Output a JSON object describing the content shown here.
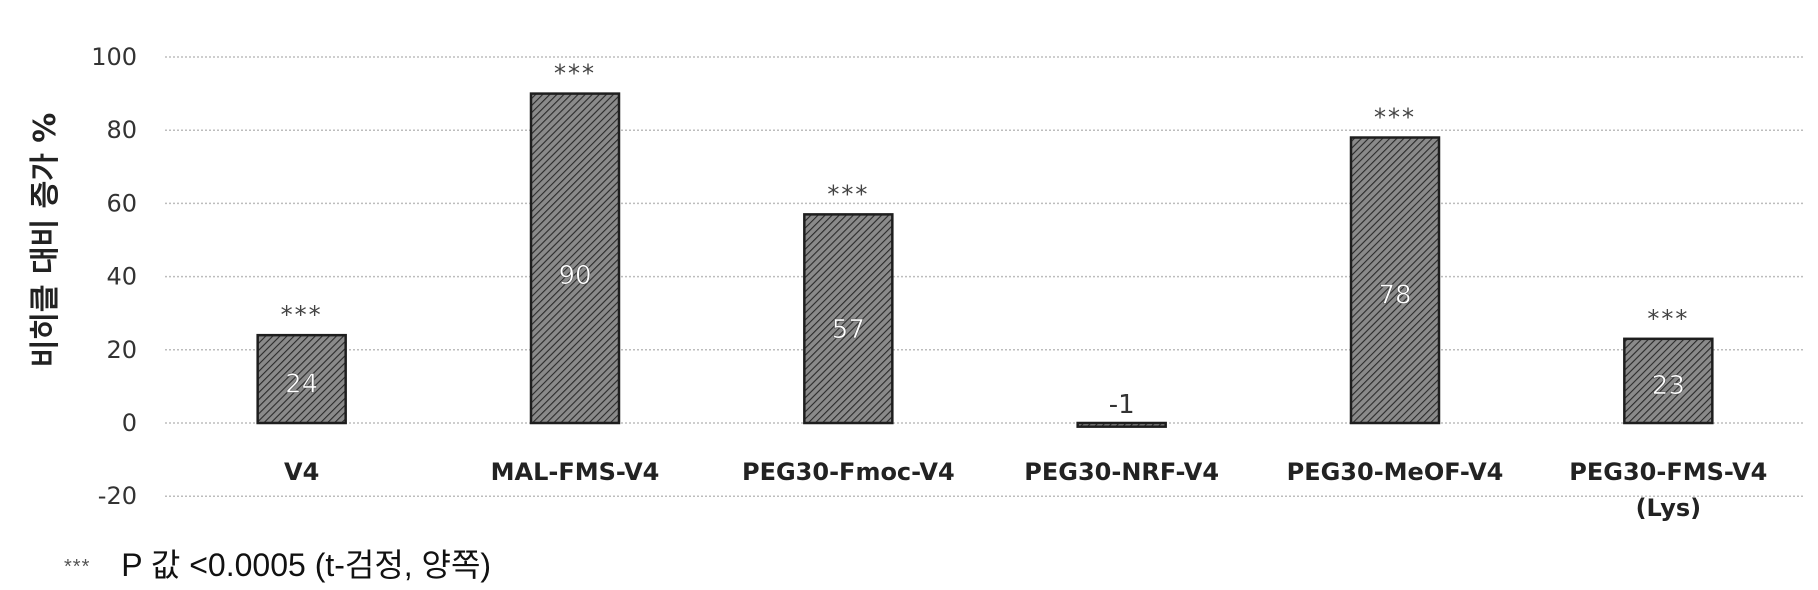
{
  "chart_data": {
    "type": "bar",
    "title": "",
    "ylabel": "비히클 대비 증가 %",
    "xlabel": "",
    "ylim": [
      -20,
      100
    ],
    "yticks": [
      100,
      80,
      60,
      40,
      20,
      0,
      -20
    ],
    "grid": true,
    "categories": [
      "V4",
      "MAL-FMS-V4",
      "PEG30-Fmoc-V4",
      "PEG30-NRF-V4",
      "PEG30-MeOF-V4",
      "PEG30-FMS-V4 (Lys)"
    ],
    "category_lines": [
      [
        "V4"
      ],
      [
        "MAL-FMS-V4"
      ],
      [
        "PEG30-Fmoc-V4"
      ],
      [
        "PEG30-NRF-V4"
      ],
      [
        "PEG30-MeOF-V4"
      ],
      [
        "PEG30-FMS-V4",
        "(Lys)"
      ]
    ],
    "values": [
      24,
      90,
      57,
      -1,
      78,
      23
    ],
    "data_labels": [
      "24",
      "90",
      "57",
      "-1",
      "78",
      "23"
    ],
    "significance": [
      "***",
      "***",
      "***",
      "",
      "***",
      "***"
    ],
    "bar_color": "#555555"
  },
  "footnote": {
    "marker": "***",
    "text": "P 값 <0.0005 (t-검정, 양쪽)"
  }
}
